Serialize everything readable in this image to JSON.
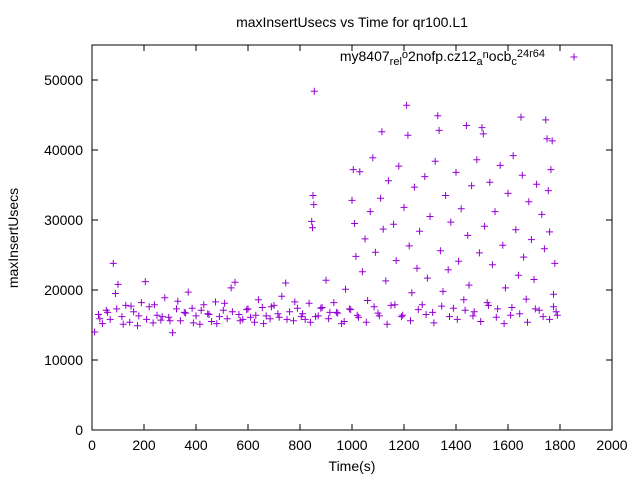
{
  "chart_data": {
    "type": "scatter",
    "title": "maxInsertUsecs vs Time for qr100.L1",
    "xlabel": "Time(s)",
    "ylabel": "maxInsertUsecs",
    "xlim": [
      0,
      2000
    ],
    "ylim": [
      0,
      55000
    ],
    "xticks": [
      0,
      200,
      400,
      600,
      800,
      1000,
      1200,
      1400,
      1600,
      1800,
      2000
    ],
    "yticks": [
      0,
      10000,
      20000,
      30000,
      40000,
      50000
    ],
    "grid": false,
    "legend_position": "top-right",
    "marker": "+",
    "series": [
      {
        "name_parts": [
          "my8407",
          "rel",
          "o",
          "2nofp.cz12",
          "a",
          "n",
          "ocb",
          "c",
          "24r64"
        ],
        "color": "#9400d3",
        "points": [
          [
            10,
            14000
          ],
          [
            25,
            16500
          ],
          [
            40,
            15200
          ],
          [
            55,
            17100
          ],
          [
            70,
            15800
          ],
          [
            82,
            23800
          ],
          [
            90,
            19500
          ],
          [
            100,
            20800
          ],
          [
            115,
            16200
          ],
          [
            130,
            17800
          ],
          [
            145,
            15400
          ],
          [
            160,
            16900
          ],
          [
            175,
            14900
          ],
          [
            190,
            18200
          ],
          [
            205,
            21200
          ],
          [
            220,
            17600
          ],
          [
            235,
            15300
          ],
          [
            250,
            16400
          ],
          [
            265,
            15700
          ],
          [
            280,
            18900
          ],
          [
            295,
            16100
          ],
          [
            310,
            13900
          ],
          [
            325,
            17300
          ],
          [
            340,
            15600
          ],
          [
            355,
            16800
          ],
          [
            370,
            19700
          ],
          [
            385,
            17400
          ],
          [
            400,
            16300
          ],
          [
            415,
            15100
          ],
          [
            430,
            17900
          ],
          [
            445,
            16600
          ],
          [
            460,
            15500
          ],
          [
            475,
            18300
          ],
          [
            490,
            16200
          ],
          [
            505,
            17100
          ],
          [
            520,
            15900
          ],
          [
            535,
            20300
          ],
          [
            550,
            21100
          ],
          [
            565,
            16500
          ],
          [
            580,
            15800
          ],
          [
            595,
            17200
          ],
          [
            610,
            16100
          ],
          [
            625,
            15400
          ],
          [
            640,
            18600
          ],
          [
            655,
            17500
          ],
          [
            670,
            16300
          ],
          [
            685,
            15900
          ],
          [
            700,
            17800
          ],
          [
            715,
            16600
          ],
          [
            730,
            19100
          ],
          [
            745,
            21000
          ],
          [
            760,
            16900
          ],
          [
            775,
            15600
          ],
          [
            790,
            17400
          ],
          [
            805,
            16200
          ],
          [
            820,
            15800
          ],
          [
            835,
            18100
          ],
          [
            845,
            29800
          ],
          [
            848,
            28900
          ],
          [
            850,
            33500
          ],
          [
            853,
            32200
          ],
          [
            855,
            48400
          ],
          [
            870,
            16300
          ],
          [
            885,
            17500
          ],
          [
            900,
            21400
          ],
          [
            915,
            16800
          ],
          [
            930,
            18200
          ],
          [
            945,
            16700
          ],
          [
            960,
            15200
          ],
          [
            975,
            20100
          ],
          [
            990,
            17300
          ],
          [
            1000,
            32800
          ],
          [
            1005,
            37200
          ],
          [
            1010,
            29500
          ],
          [
            1015,
            24800
          ],
          [
            1020,
            16400
          ],
          [
            1030,
            36900
          ],
          [
            1040,
            22600
          ],
          [
            1050,
            27300
          ],
          [
            1060,
            18500
          ],
          [
            1070,
            31200
          ],
          [
            1080,
            38900
          ],
          [
            1090,
            25400
          ],
          [
            1100,
            16700
          ],
          [
            1110,
            33100
          ],
          [
            1115,
            42600
          ],
          [
            1120,
            28700
          ],
          [
            1130,
            21300
          ],
          [
            1140,
            35600
          ],
          [
            1150,
            17800
          ],
          [
            1160,
            29400
          ],
          [
            1170,
            24200
          ],
          [
            1180,
            37700
          ],
          [
            1190,
            16200
          ],
          [
            1200,
            31800
          ],
          [
            1210,
            46400
          ],
          [
            1215,
            42100
          ],
          [
            1220,
            26300
          ],
          [
            1230,
            19600
          ],
          [
            1240,
            34700
          ],
          [
            1250,
            23100
          ],
          [
            1260,
            28400
          ],
          [
            1270,
            17900
          ],
          [
            1280,
            36200
          ],
          [
            1290,
            21700
          ],
          [
            1300,
            30500
          ],
          [
            1310,
            16800
          ],
          [
            1320,
            38400
          ],
          [
            1330,
            44900
          ],
          [
            1335,
            42800
          ],
          [
            1340,
            25600
          ],
          [
            1350,
            19800
          ],
          [
            1360,
            33500
          ],
          [
            1370,
            22900
          ],
          [
            1380,
            29700
          ],
          [
            1390,
            17400
          ],
          [
            1400,
            36800
          ],
          [
            1410,
            24100
          ],
          [
            1420,
            31600
          ],
          [
            1430,
            18600
          ],
          [
            1440,
            43500
          ],
          [
            1445,
            27800
          ],
          [
            1450,
            20700
          ],
          [
            1460,
            34900
          ],
          [
            1470,
            16900
          ],
          [
            1480,
            38600
          ],
          [
            1490,
            25300
          ],
          [
            1500,
            43200
          ],
          [
            1505,
            42300
          ],
          [
            1510,
            29100
          ],
          [
            1520,
            18200
          ],
          [
            1530,
            35400
          ],
          [
            1540,
            23600
          ],
          [
            1550,
            31200
          ],
          [
            1560,
            17300
          ],
          [
            1570,
            37800
          ],
          [
            1580,
            26400
          ],
          [
            1590,
            20300
          ],
          [
            1600,
            33800
          ],
          [
            1610,
            16400
          ],
          [
            1620,
            39200
          ],
          [
            1630,
            28600
          ],
          [
            1640,
            22100
          ],
          [
            1650,
            44700
          ],
          [
            1655,
            36400
          ],
          [
            1660,
            24700
          ],
          [
            1670,
            18700
          ],
          [
            1680,
            32600
          ],
          [
            1690,
            27200
          ],
          [
            1700,
            21500
          ],
          [
            1710,
            35100
          ],
          [
            1720,
            17100
          ],
          [
            1730,
            30800
          ],
          [
            1740,
            25900
          ],
          [
            1745,
            44300
          ],
          [
            1750,
            41600
          ],
          [
            1755,
            34200
          ],
          [
            1760,
            28300
          ],
          [
            1765,
            37200
          ],
          [
            1770,
            41300
          ],
          [
            1775,
            19400
          ],
          [
            1780,
            23800
          ],
          [
            1785,
            16900
          ],
          [
            30,
            15900
          ],
          [
            60,
            16800
          ],
          [
            95,
            17300
          ],
          [
            120,
            15100
          ],
          [
            150,
            17700
          ],
          [
            180,
            16300
          ],
          [
            210,
            15800
          ],
          [
            240,
            17900
          ],
          [
            270,
            16200
          ],
          [
            300,
            15600
          ],
          [
            330,
            18400
          ],
          [
            360,
            16700
          ],
          [
            390,
            15300
          ],
          [
            420,
            17100
          ],
          [
            450,
            16500
          ],
          [
            480,
            15200
          ],
          [
            510,
            18100
          ],
          [
            540,
            16900
          ],
          [
            570,
            15600
          ],
          [
            600,
            17300
          ],
          [
            630,
            16400
          ],
          [
            660,
            15200
          ],
          [
            690,
            17600
          ],
          [
            720,
            16100
          ],
          [
            750,
            15800
          ],
          [
            780,
            18300
          ],
          [
            810,
            16600
          ],
          [
            840,
            15400
          ],
          [
            860,
            16200
          ],
          [
            880,
            17400
          ],
          [
            910,
            15900
          ],
          [
            940,
            16800
          ],
          [
            970,
            15500
          ],
          [
            995,
            17200
          ],
          [
            1025,
            16100
          ],
          [
            1055,
            15400
          ],
          [
            1085,
            17600
          ],
          [
            1105,
            16300
          ],
          [
            1135,
            15100
          ],
          [
            1165,
            17900
          ],
          [
            1195,
            16400
          ],
          [
            1225,
            15600
          ],
          [
            1255,
            17200
          ],
          [
            1285,
            16500
          ],
          [
            1315,
            15300
          ],
          [
            1345,
            17700
          ],
          [
            1375,
            16200
          ],
          [
            1405,
            15800
          ],
          [
            1435,
            17100
          ],
          [
            1465,
            16300
          ],
          [
            1495,
            15500
          ],
          [
            1525,
            17800
          ],
          [
            1555,
            16100
          ],
          [
            1585,
            15200
          ],
          [
            1615,
            17500
          ],
          [
            1645,
            16600
          ],
          [
            1675,
            15400
          ],
          [
            1705,
            17300
          ],
          [
            1735,
            16200
          ],
          [
            1760,
            15800
          ],
          [
            1775,
            17600
          ],
          [
            1790,
            16400
          ]
        ]
      }
    ]
  }
}
